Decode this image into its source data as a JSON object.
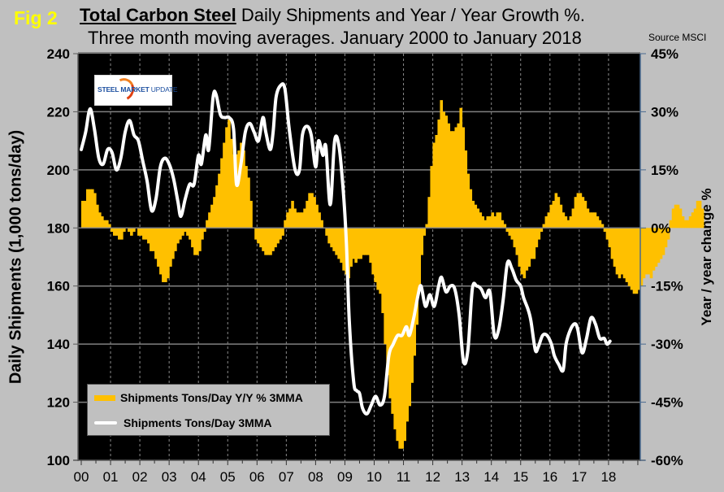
{
  "figure": {
    "fig_label": "Fig 2",
    "title_bold": "Total Carbon Steel",
    "title_rest": " Daily Shipments and Year / Year Growth %.",
    "title_line2": "Three month moving averages. January 2000 to January 2018",
    "source": "Source MSCI",
    "logo": {
      "word1": "STEEL",
      "word2": " MARKET",
      "word3": " UPDATE"
    }
  },
  "colors": {
    "background": "#c0c0c0",
    "plot_bg": "#000000",
    "bars": "#ffc000",
    "line": "#ffffff",
    "fig_label": "#ffff00",
    "gridline": "#808080"
  },
  "chart_data": {
    "type": "bar+line",
    "title": "Total Carbon Steel Daily Shipments and Year / Year Growth %. Three month moving averages. January 2000 to January 2018",
    "xlabel": "",
    "ylabel_left": "Daily Shipments (1,000 tons/day)",
    "ylabel_right": "Year / year change %",
    "x_tick_labels": [
      "00",
      "01",
      "02",
      "03",
      "04",
      "05",
      "06",
      "07",
      "08",
      "09",
      "10",
      "11",
      "12",
      "13",
      "14",
      "15",
      "16",
      "17",
      "18"
    ],
    "xlim": [
      2000.0,
      2019.2
    ],
    "ylim_left": [
      100,
      240
    ],
    "yticks_left": [
      100,
      120,
      140,
      160,
      180,
      200,
      220,
      240
    ],
    "ylim_right": [
      -60,
      45
    ],
    "yticks_right": [
      "-60%",
      "-45%",
      "-30%",
      "-15%",
      "0%",
      "15%",
      "30%",
      "45%"
    ],
    "yticks_right_values": [
      -60,
      -45,
      -30,
      -15,
      0,
      15,
      30,
      45
    ],
    "horizontal_grid": true,
    "vertical_grid": "dashed-yearly",
    "legend": {
      "position": "bottom-left",
      "entries": [
        "Shipments Tons/Day Y/Y % 3MMA",
        "Shipments Tons/Day 3MMA"
      ]
    },
    "series": [
      {
        "name": "Shipments Tons/Day Y/Y % 3MMA",
        "axis": "right",
        "type": "bar",
        "x_start": 2000.0,
        "step": 0.0833,
        "values": [
          7,
          7,
          10,
          10,
          10,
          9,
          6,
          4,
          3,
          2,
          2,
          1,
          -1,
          -2,
          -2,
          -3,
          -3,
          -1,
          0,
          -1,
          -2,
          -1,
          0,
          -2,
          -2,
          -3,
          -3,
          -4,
          -6,
          -6,
          -8,
          -10,
          -12,
          -14,
          -14,
          -13,
          -10,
          -8,
          -6,
          -4,
          -3,
          -2,
          -1,
          -2,
          -3,
          -5,
          -7,
          -7,
          -6,
          -3,
          -1,
          2,
          4,
          6,
          8,
          11,
          14,
          18,
          22,
          26,
          28,
          23,
          19,
          19,
          20,
          22,
          20,
          16,
          13,
          7,
          0,
          -3,
          -4,
          -5,
          -6,
          -7,
          -7,
          -7,
          -6,
          -5,
          -4,
          -3,
          -2,
          2,
          4,
          5,
          7,
          5,
          4,
          4,
          4,
          5,
          7,
          9,
          9,
          8,
          6,
          4,
          2,
          0,
          -2,
          -4,
          -5,
          -6,
          -7,
          -8,
          -9,
          -11,
          -12,
          -13,
          -10,
          -8,
          -9,
          -8,
          -8,
          -7,
          -7,
          -7,
          -9,
          -12,
          -14,
          -16,
          -17,
          -22,
          -30,
          -38,
          -44,
          -48,
          -52,
          -55,
          -57,
          -57,
          -55,
          -50,
          -46,
          -40,
          -33,
          -25,
          -15,
          -7,
          -2,
          1,
          8,
          16,
          22,
          24,
          28,
          33,
          30,
          29,
          27,
          25,
          25,
          26,
          27,
          31,
          26,
          20,
          14,
          10,
          7,
          6,
          5,
          4,
          3,
          2,
          3,
          3,
          4,
          3,
          4,
          4,
          2,
          1,
          -1,
          -2,
          -3,
          -5,
          -7,
          -10,
          -12,
          -13,
          -11,
          -10,
          -8,
          -8,
          -5,
          -3,
          -1,
          1,
          3,
          4,
          6,
          7,
          9,
          8,
          6,
          4,
          3,
          2,
          3,
          5,
          8,
          9,
          9,
          8,
          7,
          5,
          4,
          4,
          4,
          3,
          2,
          1,
          -1,
          -3,
          -5,
          -8,
          -10,
          -12,
          -13,
          -12,
          -13,
          -14,
          -15,
          -16,
          -17,
          -17,
          -16,
          -15,
          -13,
          -12,
          -12,
          -13,
          -11,
          -10,
          -9,
          -8,
          -7,
          -5,
          -3,
          2,
          5,
          6,
          6,
          5,
          3,
          2,
          2,
          3,
          4,
          5,
          7,
          7,
          5
        ]
      },
      {
        "name": "Shipments Tons/Day 3MMA",
        "axis": "left",
        "type": "line",
        "points": [
          [
            2000.0,
            207
          ],
          [
            2000.15,
            213
          ],
          [
            2000.3,
            221
          ],
          [
            2000.45,
            214
          ],
          [
            2000.6,
            204
          ],
          [
            2000.75,
            202
          ],
          [
            2000.9,
            207
          ],
          [
            2001.05,
            206
          ],
          [
            2001.2,
            200
          ],
          [
            2001.35,
            204
          ],
          [
            2001.5,
            213
          ],
          [
            2001.65,
            217
          ],
          [
            2001.8,
            212
          ],
          [
            2001.95,
            210
          ],
          [
            2002.1,
            203
          ],
          [
            2002.25,
            196
          ],
          [
            2002.4,
            186
          ],
          [
            2002.55,
            190
          ],
          [
            2002.7,
            201
          ],
          [
            2002.85,
            204
          ],
          [
            2003.0,
            202
          ],
          [
            2003.15,
            197
          ],
          [
            2003.3,
            189
          ],
          [
            2003.4,
            184
          ],
          [
            2003.55,
            190
          ],
          [
            2003.7,
            195
          ],
          [
            2003.85,
            195
          ],
          [
            2004.0,
            205
          ],
          [
            2004.1,
            202
          ],
          [
            2004.25,
            212
          ],
          [
            2004.35,
            207
          ],
          [
            2004.5,
            225
          ],
          [
            2004.6,
            226
          ],
          [
            2004.75,
            219
          ],
          [
            2004.9,
            218
          ],
          [
            2005.05,
            218
          ],
          [
            2005.2,
            214
          ],
          [
            2005.3,
            195
          ],
          [
            2005.45,
            202
          ],
          [
            2005.6,
            213
          ],
          [
            2005.75,
            216
          ],
          [
            2005.9,
            213
          ],
          [
            2006.05,
            210
          ],
          [
            2006.2,
            218
          ],
          [
            2006.3,
            213
          ],
          [
            2006.45,
            207
          ],
          [
            2006.55,
            213
          ],
          [
            2006.65,
            225
          ],
          [
            2006.8,
            229
          ],
          [
            2006.95,
            228
          ],
          [
            2007.1,
            214
          ],
          [
            2007.3,
            200
          ],
          [
            2007.45,
            200
          ],
          [
            2007.55,
            212
          ],
          [
            2007.7,
            215
          ],
          [
            2007.85,
            212
          ],
          [
            2008.0,
            201
          ],
          [
            2008.1,
            210
          ],
          [
            2008.25,
            205
          ],
          [
            2008.35,
            208
          ],
          [
            2008.5,
            188
          ],
          [
            2008.65,
            210
          ],
          [
            2008.8,
            208
          ],
          [
            2008.95,
            192
          ],
          [
            2009.05,
            175
          ],
          [
            2009.15,
            148
          ],
          [
            2009.3,
            127
          ],
          [
            2009.4,
            124
          ],
          [
            2009.5,
            123
          ],
          [
            2009.6,
            118
          ],
          [
            2009.75,
            116
          ],
          [
            2009.9,
            119
          ],
          [
            2010.05,
            122
          ],
          [
            2010.2,
            119
          ],
          [
            2010.35,
            122
          ],
          [
            2010.5,
            136
          ],
          [
            2010.65,
            140
          ],
          [
            2010.8,
            143
          ],
          [
            2010.95,
            143
          ],
          [
            2011.1,
            146
          ],
          [
            2011.2,
            143
          ],
          [
            2011.35,
            149
          ],
          [
            2011.5,
            157
          ],
          [
            2011.6,
            160
          ],
          [
            2011.75,
            153
          ],
          [
            2011.9,
            157
          ],
          [
            2012.05,
            153
          ],
          [
            2012.2,
            160
          ],
          [
            2012.3,
            163
          ],
          [
            2012.45,
            158
          ],
          [
            2012.6,
            160
          ],
          [
            2012.75,
            159
          ],
          [
            2012.9,
            150
          ],
          [
            2013.05,
            134
          ],
          [
            2013.2,
            138
          ],
          [
            2013.35,
            159
          ],
          [
            2013.5,
            160
          ],
          [
            2013.65,
            159
          ],
          [
            2013.8,
            156
          ],
          [
            2013.95,
            158
          ],
          [
            2014.1,
            143
          ],
          [
            2014.25,
            145
          ],
          [
            2014.4,
            155
          ],
          [
            2014.55,
            168
          ],
          [
            2014.7,
            166
          ],
          [
            2014.85,
            162
          ],
          [
            2015.0,
            160
          ],
          [
            2015.1,
            156
          ],
          [
            2015.25,
            152
          ],
          [
            2015.35,
            148
          ],
          [
            2015.5,
            138
          ],
          [
            2015.6,
            139
          ],
          [
            2015.75,
            143
          ],
          [
            2015.9,
            143
          ],
          [
            2016.05,
            140
          ],
          [
            2016.15,
            136
          ],
          [
            2016.3,
            133
          ],
          [
            2016.45,
            131
          ],
          [
            2016.55,
            140
          ],
          [
            2016.7,
            145
          ],
          [
            2016.85,
            147
          ],
          [
            2016.95,
            145
          ],
          [
            2017.1,
            137
          ],
          [
            2017.25,
            142
          ],
          [
            2017.4,
            149
          ],
          [
            2017.55,
            147
          ],
          [
            2017.7,
            142
          ],
          [
            2017.85,
            142
          ],
          [
            2017.95,
            140
          ],
          [
            2018.05,
            141
          ]
        ]
      }
    ]
  }
}
